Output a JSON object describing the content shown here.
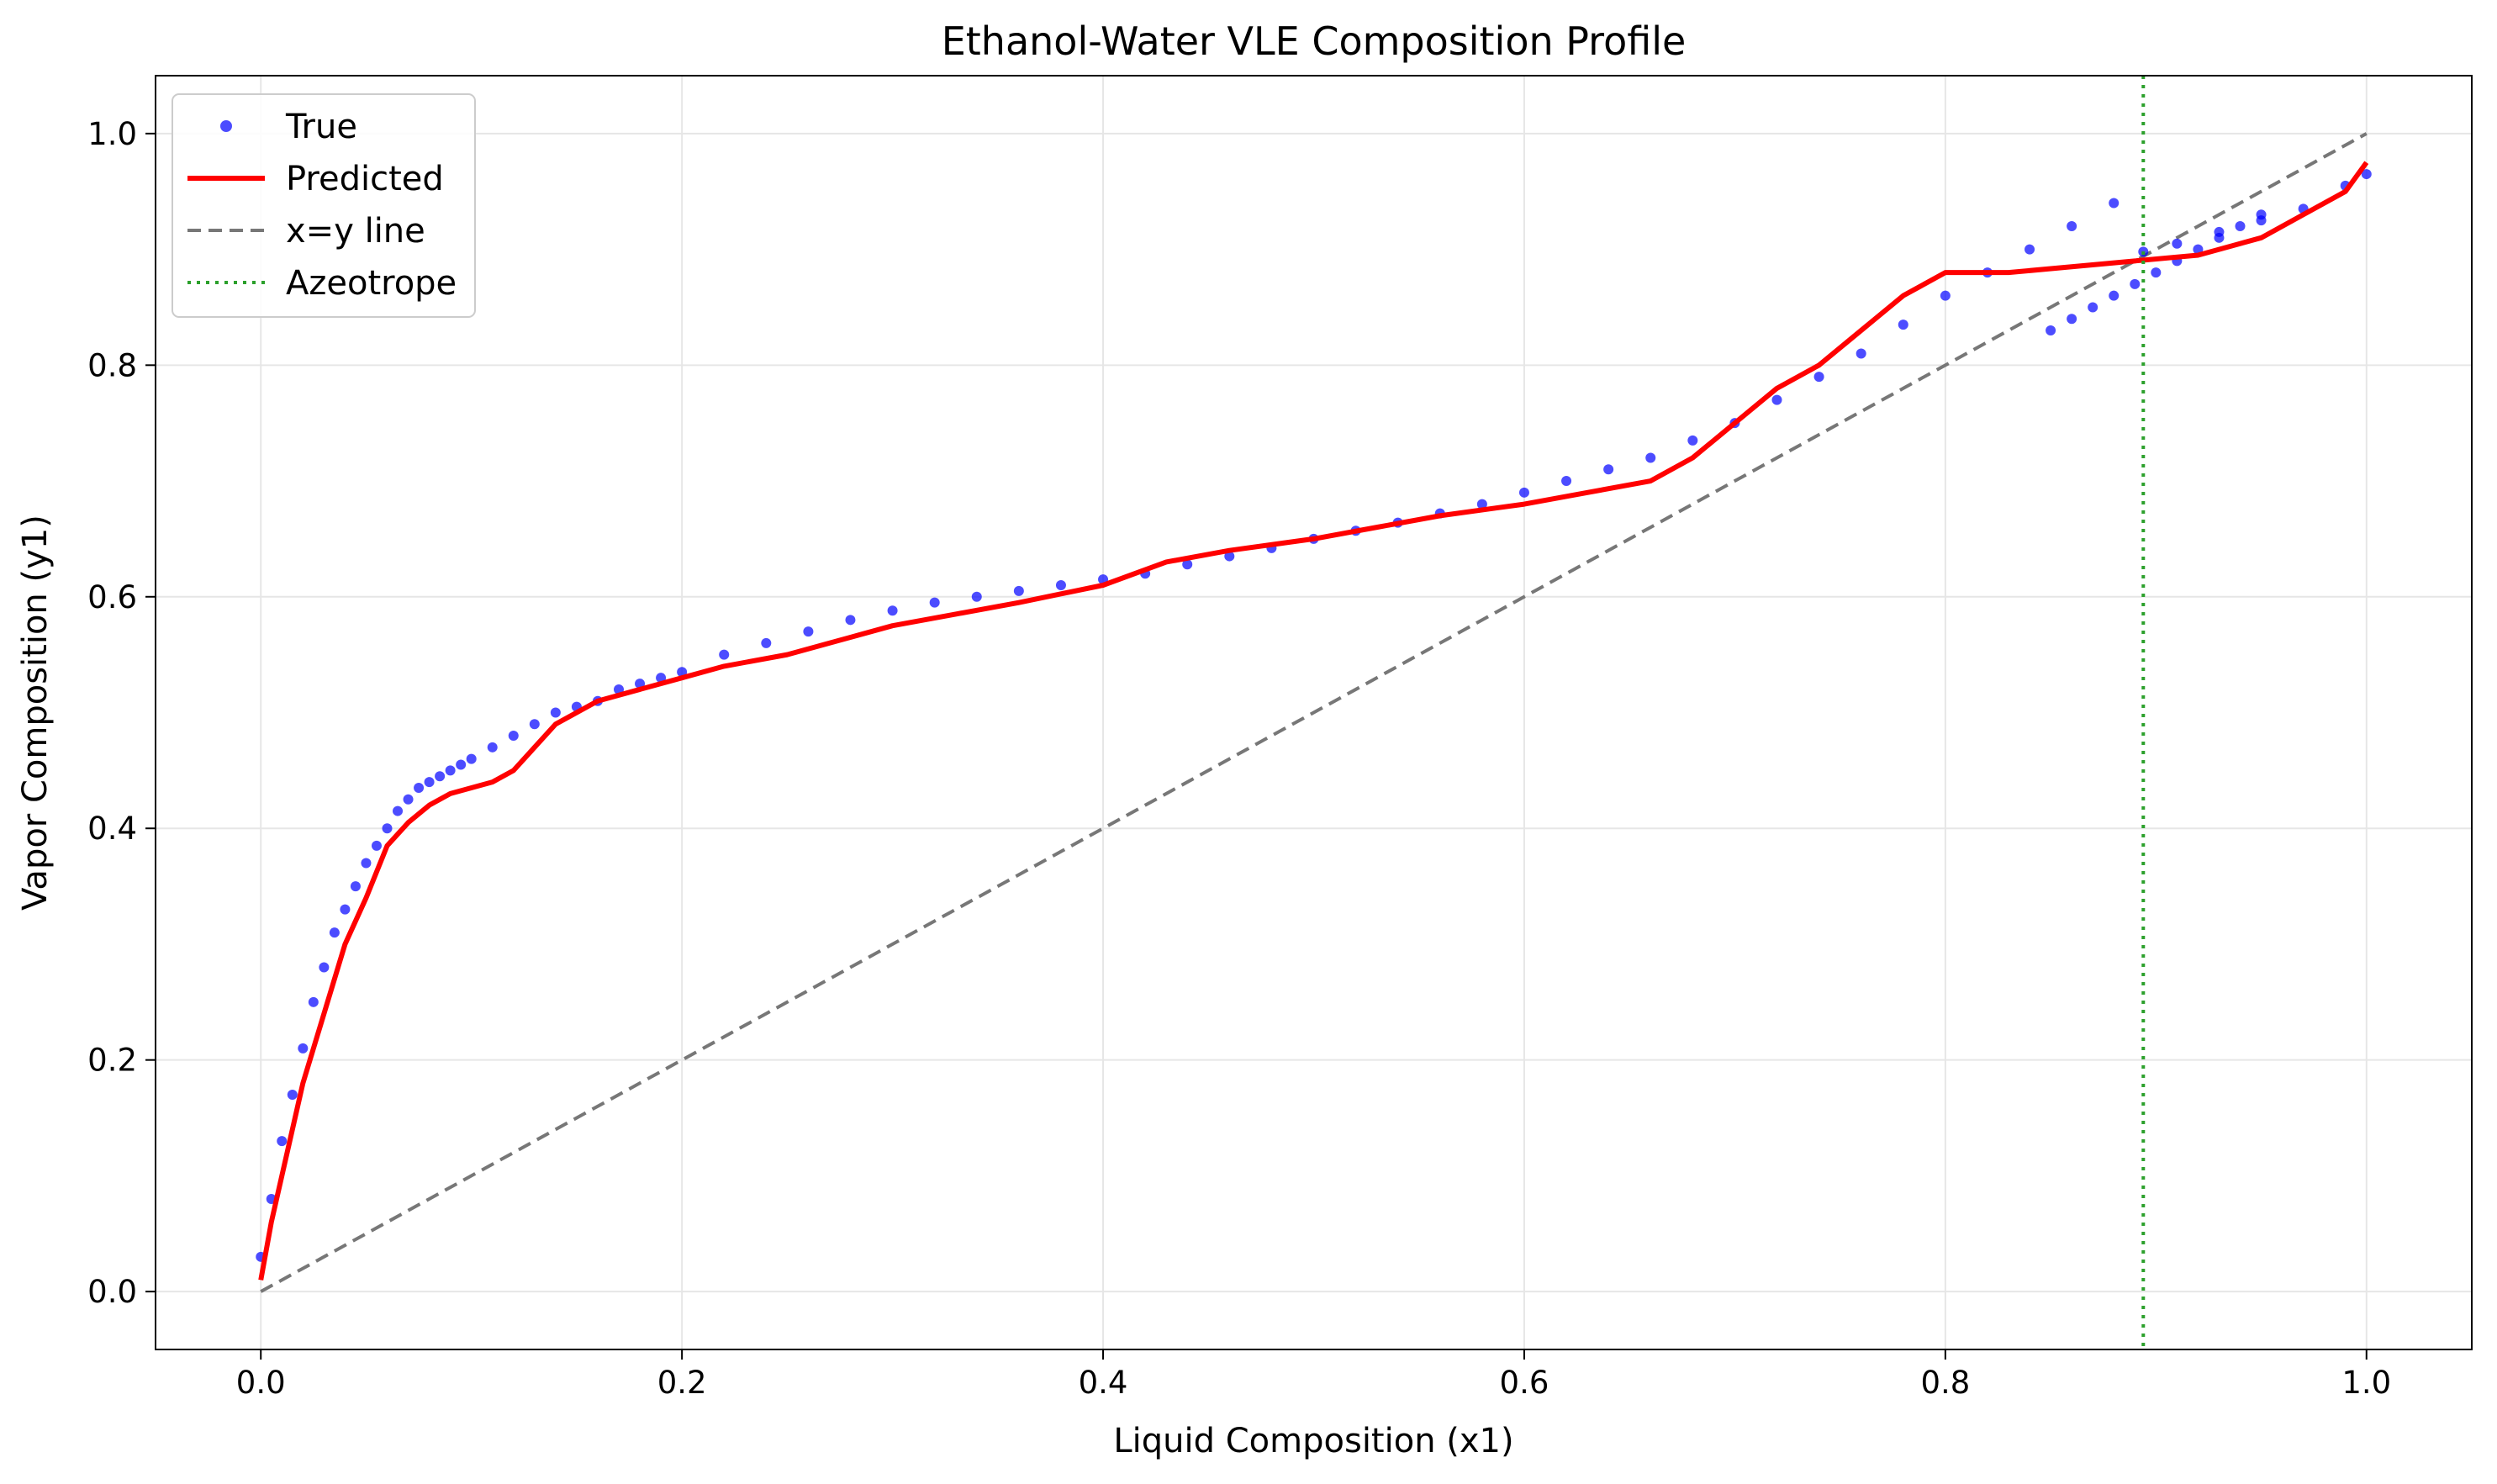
{
  "chart_data": {
    "type": "scatter",
    "title": "Ethanol-Water VLE Composition Profile",
    "xlabel": "Liquid Composition (x1)",
    "ylabel": "Vapor Composition (y1)",
    "xlim": [
      -0.05,
      1.05
    ],
    "ylim": [
      -0.05,
      1.05
    ],
    "xticks": [
      "0.0",
      "0.2",
      "0.4",
      "0.6",
      "0.8",
      "1.0"
    ],
    "yticks": [
      "0.0",
      "0.2",
      "0.4",
      "0.6",
      "0.8",
      "1.0"
    ],
    "grid": true,
    "legend_position": "upper-left",
    "colors": {
      "true": "#0000ff",
      "predicted": "#ff0000",
      "diagonal": "#777777",
      "azeotrope": "#2ca02c"
    },
    "series": [
      {
        "name": "True",
        "style": "points",
        "x": [
          0.0,
          0.005,
          0.01,
          0.015,
          0.02,
          0.025,
          0.03,
          0.035,
          0.04,
          0.045,
          0.05,
          0.055,
          0.06,
          0.065,
          0.07,
          0.075,
          0.08,
          0.085,
          0.09,
          0.095,
          0.1,
          0.11,
          0.12,
          0.13,
          0.14,
          0.15,
          0.16,
          0.17,
          0.18,
          0.19,
          0.2,
          0.22,
          0.24,
          0.26,
          0.28,
          0.3,
          0.32,
          0.34,
          0.36,
          0.38,
          0.4,
          0.42,
          0.44,
          0.46,
          0.48,
          0.5,
          0.52,
          0.54,
          0.56,
          0.58,
          0.6,
          0.62,
          0.64,
          0.66,
          0.68,
          0.7,
          0.72,
          0.74,
          0.76,
          0.78,
          0.8,
          0.82,
          0.84,
          0.86,
          0.88,
          0.894,
          0.91,
          0.93,
          0.95,
          0.97,
          0.99,
          1.0
        ],
        "y": [
          0.03,
          0.08,
          0.13,
          0.17,
          0.21,
          0.25,
          0.28,
          0.31,
          0.33,
          0.35,
          0.37,
          0.385,
          0.4,
          0.415,
          0.425,
          0.435,
          0.44,
          0.445,
          0.45,
          0.455,
          0.46,
          0.47,
          0.48,
          0.49,
          0.5,
          0.505,
          0.51,
          0.52,
          0.525,
          0.53,
          0.535,
          0.55,
          0.56,
          0.57,
          0.58,
          0.588,
          0.595,
          0.6,
          0.605,
          0.61,
          0.615,
          0.62,
          0.628,
          0.635,
          0.642,
          0.65,
          0.657,
          0.664,
          0.672,
          0.68,
          0.69,
          0.7,
          0.71,
          0.72,
          0.735,
          0.75,
          0.77,
          0.79,
          0.81,
          0.835,
          0.86,
          0.88,
          0.9,
          0.92,
          0.94,
          0.898,
          0.905,
          0.915,
          0.925,
          0.935,
          0.955,
          0.965
        ]
      },
      {
        "name": "True",
        "style": "points-secondary",
        "x": [
          0.85,
          0.86,
          0.87,
          0.88,
          0.89,
          0.9,
          0.91,
          0.92,
          0.93,
          0.94,
          0.95
        ],
        "y": [
          0.83,
          0.84,
          0.85,
          0.86,
          0.87,
          0.88,
          0.89,
          0.9,
          0.91,
          0.92,
          0.93
        ]
      },
      {
        "name": "Predicted",
        "style": "line",
        "x": [
          0.0,
          0.005,
          0.01,
          0.015,
          0.02,
          0.03,
          0.04,
          0.05,
          0.06,
          0.07,
          0.08,
          0.09,
          0.1,
          0.11,
          0.12,
          0.13,
          0.14,
          0.15,
          0.16,
          0.18,
          0.2,
          0.22,
          0.25,
          0.28,
          0.3,
          0.33,
          0.36,
          0.4,
          0.43,
          0.46,
          0.5,
          0.53,
          0.56,
          0.6,
          0.63,
          0.66,
          0.68,
          0.7,
          0.72,
          0.74,
          0.76,
          0.78,
          0.8,
          0.83,
          0.86,
          0.89,
          0.92,
          0.95,
          0.97,
          0.99,
          1.0
        ],
        "y": [
          0.01,
          0.06,
          0.1,
          0.14,
          0.18,
          0.24,
          0.3,
          0.34,
          0.385,
          0.405,
          0.42,
          0.43,
          0.435,
          0.44,
          0.45,
          0.47,
          0.49,
          0.5,
          0.51,
          0.52,
          0.53,
          0.54,
          0.55,
          0.565,
          0.575,
          0.585,
          0.595,
          0.61,
          0.63,
          0.64,
          0.65,
          0.66,
          0.67,
          0.68,
          0.69,
          0.7,
          0.72,
          0.75,
          0.78,
          0.8,
          0.83,
          0.86,
          0.88,
          0.88,
          0.885,
          0.89,
          0.895,
          0.91,
          0.93,
          0.95,
          0.975
        ]
      },
      {
        "name": "x=y line",
        "style": "dashed",
        "x": [
          0.0,
          1.0
        ],
        "y": [
          0.0,
          1.0
        ]
      }
    ],
    "vlines": [
      {
        "name": "Azeotrope",
        "x": 0.894,
        "style": "dotted"
      }
    ],
    "legend": [
      {
        "label": "True",
        "marker": "point"
      },
      {
        "label": "Predicted",
        "marker": "solid-line"
      },
      {
        "label": "x=y line",
        "marker": "dashed-line"
      },
      {
        "label": "Azeotrope",
        "marker": "dotted-line"
      }
    ]
  }
}
